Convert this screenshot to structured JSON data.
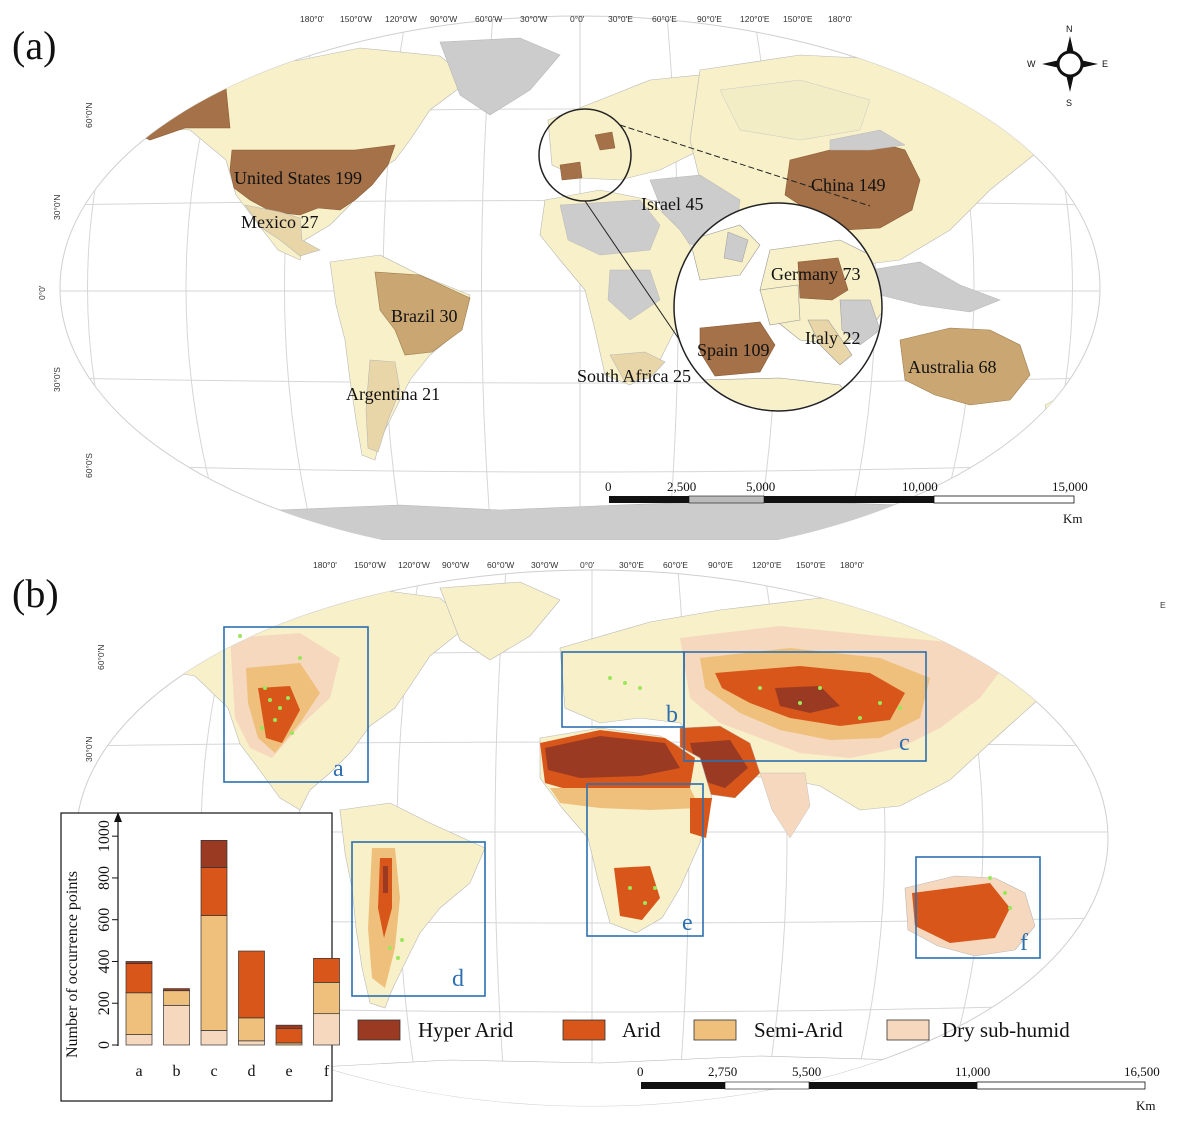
{
  "panels": {
    "a": {
      "label": "(a)"
    },
    "b": {
      "label": "(b)"
    }
  },
  "graticule": {
    "longitudes_top": [
      "180°0'",
      "150°0'W",
      "120°0'W",
      "90°0'W",
      "60°0'W",
      "30°0'W",
      "0°0'",
      "30°0'E",
      "60°0'E",
      "90°0'E",
      "120°0'E",
      "150°0'E",
      "180°0'"
    ],
    "latitudes_left": [
      "60°0'N",
      "30°0'N",
      "0°0'",
      "30°0'S",
      "60°0'S"
    ]
  },
  "compass": {
    "n": "N",
    "s": "S",
    "e": "E",
    "w": "W"
  },
  "country_counts": [
    {
      "name": "United States 199",
      "country": "United States",
      "count": 199
    },
    {
      "name": "Mexico 27",
      "country": "Mexico",
      "count": 27
    },
    {
      "name": "Brazil 30",
      "country": "Brazil",
      "count": 30
    },
    {
      "name": "Argentina 21",
      "country": "Argentina",
      "count": 21
    },
    {
      "name": "Israel 45",
      "country": "Israel",
      "count": 45
    },
    {
      "name": "China 149",
      "country": "China",
      "count": 149
    },
    {
      "name": "Germany 73",
      "country": "Germany",
      "count": 73
    },
    {
      "name": "Italy 22",
      "country": "Italy",
      "count": 22
    },
    {
      "name": "Spain 109",
      "country": "Spain",
      "count": 109
    },
    {
      "name": "South Africa 25",
      "country": "South Africa",
      "count": 25
    },
    {
      "name": "Australia 68",
      "country": "Australia",
      "count": 68
    }
  ],
  "scalebar_a": {
    "ticks": [
      "0",
      "2,500",
      "5,000",
      "10,000",
      "15,000"
    ],
    "unit": "Km"
  },
  "scalebar_b": {
    "ticks": [
      "0",
      "2,750",
      "5,500",
      "11,000",
      "16,500"
    ],
    "unit": "Km"
  },
  "stray_mark": "E",
  "regions": [
    "a",
    "b",
    "c",
    "d",
    "e",
    "f"
  ],
  "legend": [
    {
      "label": "Hyper Arid",
      "color": "#9b3a22"
    },
    {
      "label": "Arid",
      "color": "#d8561a"
    },
    {
      "label": "Semi-Arid",
      "color": "#eec07c"
    },
    {
      "label": "Dry sub-humid",
      "color": "#f6d8be"
    }
  ],
  "colors": {
    "ocean": "#ffffff",
    "land_base": "#f7f0c8",
    "no_data": "#cccccc",
    "count_dark": "#a47148",
    "count_mid": "#c9a672",
    "count_light": "#e8d6a8",
    "region_box": "#2c6fb0",
    "occurrence": "#9be65a"
  },
  "chart_data": {
    "type": "bar",
    "stacked": true,
    "categories": [
      "a",
      "b",
      "c",
      "d",
      "e",
      "f"
    ],
    "ylabel": "Number of occurrence points",
    "xlabel": "",
    "ylim": [
      0,
      1050
    ],
    "yticks": [
      0,
      200,
      400,
      600,
      800,
      1000
    ],
    "series": [
      {
        "name": "Dry sub-humid",
        "color": "#f6d8be",
        "values": [
          50,
          190,
          70,
          20,
          0,
          150
        ]
      },
      {
        "name": "Semi-Arid",
        "color": "#eec07c",
        "values": [
          200,
          70,
          550,
          110,
          10,
          150
        ]
      },
      {
        "name": "Arid",
        "color": "#d8561a",
        "values": [
          140,
          0,
          230,
          320,
          70,
          115
        ]
      },
      {
        "name": "Hyper Arid",
        "color": "#9b3a22",
        "values": [
          10,
          10,
          130,
          0,
          15,
          0
        ]
      }
    ]
  }
}
